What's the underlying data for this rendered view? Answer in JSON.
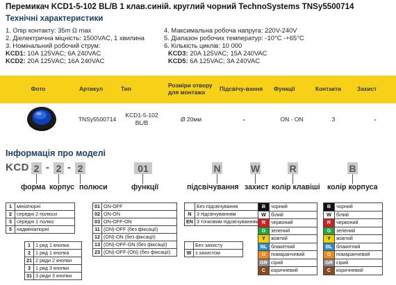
{
  "title": "Перемикач KCD1-5-102 BL/B 1 клав.синій. круглий чорний TechnoSystems TNSy5500714",
  "specs": {
    "heading": "Технічні характеристики",
    "left": [
      "1. Опір контакту: 35m Ω  max",
      "2. Діелектрична міцність: 1500VAC, 1 хвилина",
      "3. Номінальний робочий струм:"
    ],
    "kcd1_label": "KCD1:",
    "kcd1_value": " 10A 125VAC; 6A 240VAC",
    "kcd2_label": "KCD2:",
    "kcd2_value": " 20A 125VAC; 16A 240VAC",
    "right": [
      "4. Максимальна робоча напруга: 220V-240V",
      "5. Діапазон робочих температур: -10°C -+65°C",
      "6. Кількість циклів: 10 000"
    ],
    "kcd3_label": "KCD3:",
    "kcd3_value": " 20A 125VAC; 15A 240VAC",
    "kcd5_label": "KCD5:",
    "kcd5_value": " 6A 125VAC; 3A 240VAC"
  },
  "product_table": {
    "headers": [
      "Фото",
      "Артикул",
      "Тип",
      "Розміри отвору для монтажа",
      "Підсвічу-вання",
      "Функції",
      "Контакти",
      "Захист"
    ],
    "row": [
      "",
      "TNSy5500714",
      "KCD1-5-102 BL/B",
      "Ø 20мм",
      "-",
      "ON - ON",
      "3",
      "-"
    ]
  },
  "model_info": {
    "heading": "Інформація про моделі",
    "prefix": "KCD",
    "codes": [
      "2",
      "2",
      "2",
      "01",
      "N",
      "W",
      "R",
      "B"
    ],
    "dash": "-",
    "labels": [
      "форма",
      "корпус",
      "полюси",
      "функції",
      "підсвічування",
      "захист",
      "колір клавіші",
      "колір корпуса"
    ],
    "forma": [
      [
        "1",
        "мініатюрні"
      ],
      [
        "2",
        "середні 2 полюси"
      ],
      [
        "3",
        "середні 1 полюс"
      ],
      [
        "5",
        "надмініатюрні"
      ]
    ],
    "poles": [
      [
        "1",
        "1 ряд 1 кнопка"
      ],
      [
        "2",
        "1 ряд 1 кнопка"
      ],
      [
        "21",
        "2 ряди 2 кнопки"
      ],
      [
        "3",
        "1 ряд 3 кнопки"
      ],
      [
        "31",
        "3 ряди 3 кнопки"
      ]
    ],
    "functions": [
      [
        "01",
        "ON-OFF"
      ],
      [
        "02",
        "ON-ON"
      ],
      [
        "03",
        "ON-OFF-ON"
      ],
      [
        "11",
        "(ON)-OFF (без фіксації)"
      ],
      [
        "12",
        "(ON)-ON (без фіксації)"
      ],
      [
        "13",
        "(ON)-OFF-ON (без фіксації)"
      ],
      [
        "23",
        "(ON)-OFF-(ON) (без фіксації)"
      ]
    ],
    "backlight": [
      [
        "",
        "Без підсвічування"
      ],
      [
        "N",
        "3 підсвічуванням"
      ],
      [
        "EN",
        "3 точковим підсвічуванням"
      ]
    ],
    "protection": [
      [
        "",
        "Без захисту"
      ],
      [
        "W",
        "з захистом"
      ]
    ],
    "colors": [
      [
        "B",
        "чорний",
        "#111111"
      ],
      [
        "W",
        "білий",
        "#ffffff"
      ],
      [
        "R",
        "червоний",
        "#d42020"
      ],
      [
        "G",
        "зелений",
        "#2fa13c"
      ],
      [
        "Y",
        "жовтий",
        "#f2d000"
      ],
      [
        "BL",
        "блакитний",
        "#2a8fd6"
      ],
      [
        "O",
        "помаранчевий",
        "#f08a12"
      ],
      [
        "GR",
        "сірий",
        "#8c8c8c"
      ],
      [
        "C",
        "коричневий",
        "#8a4a1c"
      ]
    ]
  }
}
